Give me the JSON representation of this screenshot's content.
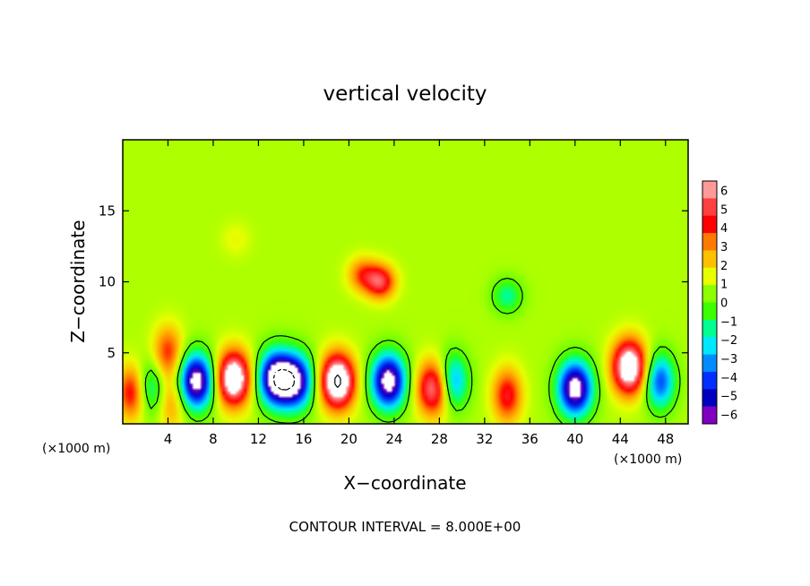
{
  "chart_data": {
    "type": "heatmap",
    "title": "vertical velocity",
    "xlabel": "X−coordinate",
    "ylabel": "Z−coordinate",
    "x_units_note_left": "(×1000 m)",
    "x_units_note_right": "(×1000 m)",
    "footer": "CONTOUR INTERVAL = 8.000E+00",
    "xlim": [
      0,
      50
    ],
    "ylim": [
      0,
      20
    ],
    "x_ticks": [
      4,
      8,
      12,
      16,
      20,
      24,
      28,
      32,
      36,
      40,
      44,
      48
    ],
    "y_ticks": [
      5,
      10,
      15
    ],
    "colorbar": {
      "min": -6,
      "max": 6,
      "tick_labels": [
        "6",
        "5",
        "4",
        "3",
        "2",
        "1",
        "0",
        "−1",
        "−2",
        "−3",
        "−4",
        "−5",
        "−6"
      ],
      "colors": [
        "#ff9a9a",
        "#ff4040",
        "#ff0000",
        "#ff7a00",
        "#ffc000",
        "#e8ff00",
        "#8cff00",
        "#3cff00",
        "#00ff90",
        "#00e8ff",
        "#008cff",
        "#0030ff",
        "#0000c0",
        "#8000c0"
      ]
    },
    "background_value": 0.8,
    "features": [
      {
        "x": 0.8,
        "z": 2.2,
        "value": 4.5
      },
      {
        "x": 2.5,
        "z": 2.5,
        "value": -2.0
      },
      {
        "x": 4.0,
        "z": 5.0,
        "value": 4.0
      },
      {
        "x": 4.3,
        "z": 1.5,
        "value": 3.0
      },
      {
        "x": 6.5,
        "z": 3.0,
        "value": -7.0
      },
      {
        "x": 9.8,
        "z": 3.2,
        "value": 8.0
      },
      {
        "x": 13.5,
        "z": 3.2,
        "value": -7.0
      },
      {
        "x": 15.3,
        "z": 3.0,
        "value": -6.0
      },
      {
        "x": 19.0,
        "z": 3.0,
        "value": 8.5
      },
      {
        "x": 21.2,
        "z": 10.5,
        "value": 3.5
      },
      {
        "x": 22.8,
        "z": 10.0,
        "value": 5.0
      },
      {
        "x": 23.5,
        "z": 3.0,
        "value": -7.0
      },
      {
        "x": 27.5,
        "z": 2.5,
        "value": 6.0
      },
      {
        "x": 29.2,
        "z": 3.0,
        "value": -3.5
      },
      {
        "x": 34.0,
        "z": 2.0,
        "value": 4.5
      },
      {
        "x": 40.0,
        "z": 2.5,
        "value": -7.0
      },
      {
        "x": 44.8,
        "z": 4.0,
        "value": 8.0
      },
      {
        "x": 47.5,
        "z": 3.0,
        "value": -4.0
      },
      {
        "x": 34.0,
        "z": 9.0,
        "value": -1.5
      },
      {
        "x": 10.0,
        "z": 13.0,
        "value": 1.5
      }
    ]
  }
}
